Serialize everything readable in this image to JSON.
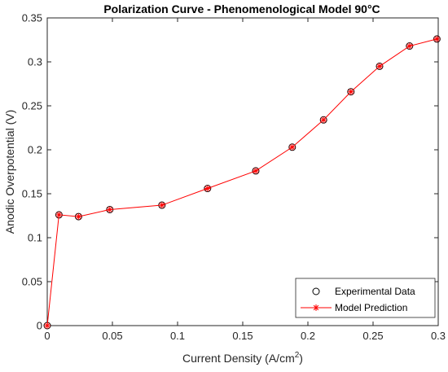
{
  "chart_data": {
    "type": "line",
    "title": "Polarization Curve - Phenomenological Model  90°C",
    "xlabel": "Current Density (A/cm",
    "xlabel_superscript": "2",
    "xlabel_suffix": ")",
    "ylabel": "Anodic Overpotential (V)",
    "xlim": [
      0,
      0.3
    ],
    "ylim": [
      0,
      0.35
    ],
    "x_ticks": [
      "0",
      "0.05",
      "0.1",
      "0.15",
      "0.2",
      "0.25",
      "0.3"
    ],
    "y_ticks": [
      "0",
      "0.05",
      "0.1",
      "0.15",
      "0.2",
      "0.25",
      "0.3",
      "0.35"
    ],
    "grid": false,
    "legend_position": "bottom-right",
    "series": [
      {
        "name": "Experimental Data",
        "style": "markers",
        "marker": "circle",
        "color": "#000000",
        "x": [
          0,
          0.009,
          0.024,
          0.048,
          0.088,
          0.123,
          0.16,
          0.188,
          0.212,
          0.233,
          0.255,
          0.278,
          0.299
        ],
        "y": [
          0,
          0.126,
          0.124,
          0.132,
          0.137,
          0.156,
          0.176,
          0.203,
          0.234,
          0.266,
          0.295,
          0.318,
          0.326
        ]
      },
      {
        "name": "Model Prediction",
        "style": "line-markers",
        "marker": "asterisk",
        "color": "#ff0000",
        "x": [
          0,
          0.009,
          0.024,
          0.048,
          0.088,
          0.123,
          0.16,
          0.188,
          0.212,
          0.233,
          0.255,
          0.278,
          0.299
        ],
        "y": [
          0,
          0.126,
          0.124,
          0.132,
          0.137,
          0.156,
          0.176,
          0.203,
          0.234,
          0.266,
          0.295,
          0.318,
          0.326
        ]
      }
    ]
  }
}
